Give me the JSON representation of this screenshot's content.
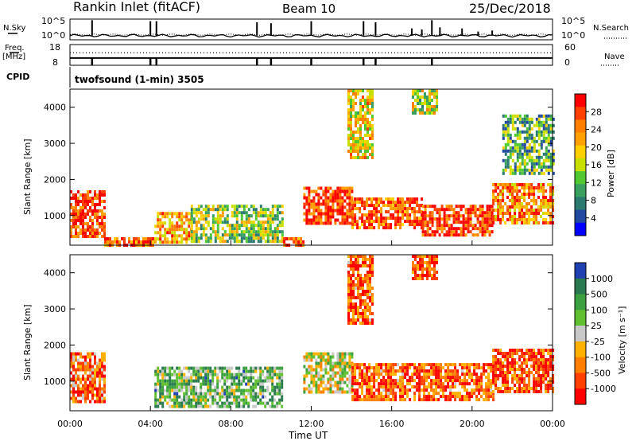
{
  "header": {
    "site": "Rankin Inlet (fitACF)",
    "beam": "Beam 10",
    "date": "25/Dec/2018"
  },
  "chart_data": [
    {
      "type": "line",
      "panel": "noise",
      "left_label": "N.Sky",
      "right_label": "N.Search",
      "left_ticks": [
        "10^5",
        "10^0"
      ],
      "right_ticks": [
        "10^5",
        "10^0"
      ],
      "xlim": [
        0,
        24
      ],
      "series_left_base": 0.2,
      "series_right_base": 0.25,
      "spikes": [
        {
          "t": 1.1,
          "v": 0.95
        },
        {
          "t": 4.0,
          "v": 0.9
        },
        {
          "t": 4.3,
          "v": 0.9
        },
        {
          "t": 9.3,
          "v": 0.85
        },
        {
          "t": 10.0,
          "v": 0.8
        },
        {
          "t": 12.0,
          "v": 0.9
        },
        {
          "t": 14.6,
          "v": 0.9
        },
        {
          "t": 15.2,
          "v": 0.85
        },
        {
          "t": 17.0,
          "v": 0.55
        },
        {
          "t": 17.5,
          "v": 0.5
        },
        {
          "t": 18.0,
          "v": 0.95
        },
        {
          "t": 18.4,
          "v": 0.6
        },
        {
          "t": 19.5,
          "v": 0.55
        },
        {
          "t": 20.3,
          "v": 0.4
        },
        {
          "t": 21.0,
          "v": 0.45
        }
      ]
    },
    {
      "type": "line",
      "panel": "frequency",
      "left_label": "Freq.",
      "left_unit": "[MHz]",
      "right_label": "Nave",
      "left_ticks": [
        "18",
        "8"
      ],
      "right_ticks": [
        "60",
        "0"
      ],
      "cpid_label": "CPID",
      "cpid_text": "twofsound (1-min) 3505",
      "xlim": [
        0,
        24
      ],
      "freq_level": 0.35,
      "nave_level": 0.6,
      "dips": [
        1.1,
        4.0,
        4.3,
        9.3,
        10.0,
        12.0,
        14.6,
        15.2,
        18.0
      ]
    },
    {
      "type": "heatmap",
      "panel": "power",
      "ylabel": "Slant Range [km]",
      "yticks": [
        1000,
        2000,
        3000,
        4000
      ],
      "ylim": [
        180,
        4500
      ],
      "xlim": [
        0,
        24
      ],
      "colorbar_label": "Power [dB]",
      "colorbar_ticks": [
        "28",
        "24",
        "20",
        "16",
        "12",
        "8",
        "4"
      ],
      "colorbar_colors": [
        "#ff0000",
        "#ff4000",
        "#ff8000",
        "#ffa000",
        "#ffd000",
        "#c8e000",
        "#50c830",
        "#3aa060",
        "#2a7a70",
        "#1f4aa0",
        "#0000ff"
      ],
      "bands": [
        {
          "t0": 0.0,
          "t1": 1.7,
          "r0": 400,
          "r1": 1700,
          "level": 0.9
        },
        {
          "t0": 1.7,
          "t1": 4.2,
          "r0": 180,
          "r1": 400,
          "level": 0.8
        },
        {
          "t0": 4.2,
          "t1": 6.0,
          "r0": 300,
          "r1": 1100,
          "level": 0.7
        },
        {
          "t0": 6.0,
          "t1": 10.6,
          "r0": 300,
          "r1": 1300,
          "level": 0.45
        },
        {
          "t0": 10.6,
          "t1": 11.6,
          "r0": 180,
          "r1": 400,
          "level": 0.85
        },
        {
          "t0": 11.6,
          "t1": 14.0,
          "r0": 800,
          "r1": 1800,
          "level": 0.9
        },
        {
          "t0": 14.0,
          "t1": 17.5,
          "r0": 700,
          "r1": 1500,
          "level": 0.85
        },
        {
          "t0": 17.5,
          "t1": 21.0,
          "r0": 500,
          "r1": 1300,
          "level": 0.9
        },
        {
          "t0": 21.0,
          "t1": 24.0,
          "r0": 800,
          "r1": 1900,
          "level": 0.75
        },
        {
          "t0": 13.8,
          "t1": 15.0,
          "r0": 2600,
          "r1": 4500,
          "level": 0.6
        },
        {
          "t0": 17.0,
          "t1": 18.3,
          "r0": 3800,
          "r1": 4500,
          "level": 0.5
        },
        {
          "t0": 21.5,
          "t1": 24.0,
          "r0": 2200,
          "r1": 3800,
          "level": 0.35
        }
      ]
    },
    {
      "type": "heatmap",
      "panel": "velocity",
      "ylabel": "Slant Range [km]",
      "yticks": [
        1000,
        2000,
        3000,
        4000
      ],
      "ylim": [
        180,
        4500
      ],
      "xlim": [
        0,
        24
      ],
      "xticks": [
        "00:00",
        "04:00",
        "08:00",
        "12:00",
        "16:00",
        "20:00",
        "00:00"
      ],
      "xlabel": "Time UT",
      "colorbar_label": "Velocity [m s⁻¹]",
      "colorbar_ticks": [
        "1000",
        "500",
        "100",
        "25",
        "-25",
        "-100",
        "-500",
        "-1000"
      ],
      "colorbar_colors": [
        "#1f40b0",
        "#2a7a50",
        "#3aa040",
        "#60c030",
        "#c8c8c8",
        "#ffb000",
        "#ff8000",
        "#ff4000",
        "#ff0000"
      ],
      "bands": [
        {
          "t0": 0.0,
          "t1": 1.7,
          "r0": 400,
          "r1": 1800,
          "level": 0.25
        },
        {
          "t0": 4.2,
          "t1": 10.6,
          "r0": 300,
          "r1": 1400,
          "level": 0.65
        },
        {
          "t0": 11.6,
          "t1": 14.0,
          "r0": 700,
          "r1": 1800,
          "level": 0.5
        },
        {
          "t0": 14.0,
          "t1": 21.0,
          "r0": 500,
          "r1": 1500,
          "level": 0.2
        },
        {
          "t0": 21.0,
          "t1": 24.0,
          "r0": 700,
          "r1": 1900,
          "level": 0.15
        },
        {
          "t0": 13.8,
          "t1": 15.0,
          "r0": 2600,
          "r1": 4500,
          "level": 0.2
        },
        {
          "t0": 17.0,
          "t1": 18.3,
          "r0": 3800,
          "r1": 4500,
          "level": 0.2
        }
      ]
    }
  ]
}
